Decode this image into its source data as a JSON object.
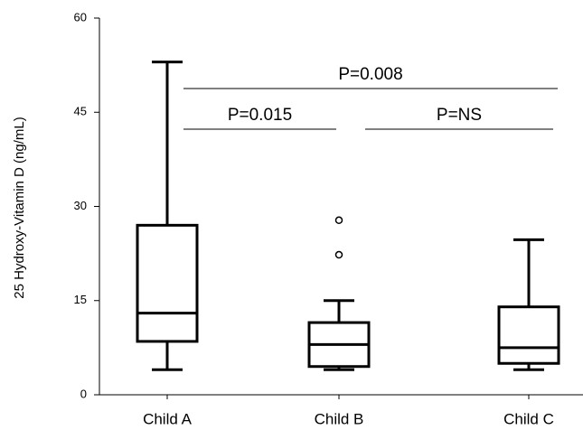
{
  "chart_data": {
    "type": "box",
    "ylabel": "25 Hydroxy-Vitamin D (ng/mL)",
    "categories": [
      "Child A",
      "Child B",
      "Child C"
    ],
    "boxes": [
      {
        "min": 4,
        "q1": 8.5,
        "median": 13,
        "q3": 27,
        "max": 53,
        "outliers": []
      },
      {
        "min": 4,
        "q1": 4.5,
        "median": 8,
        "q3": 11.5,
        "max": 15,
        "outliers": [
          22.3,
          27.8
        ]
      },
      {
        "min": 4,
        "q1": 5,
        "median": 7.5,
        "q3": 14,
        "max": 24.7,
        "outliers": []
      }
    ],
    "color": "#000000",
    "ylim": [
      0,
      60
    ],
    "yticks": [
      0,
      15,
      30,
      45,
      60
    ],
    "annotations": [
      "P=0.008",
      "P=0.015",
      "P=NS"
    ]
  }
}
